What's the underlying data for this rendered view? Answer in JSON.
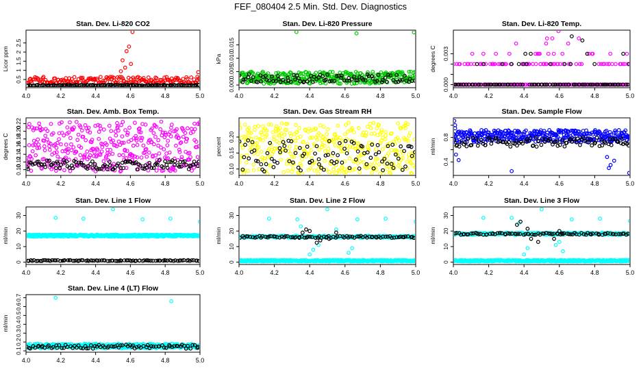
{
  "page": {
    "title": "FEF_080404  2.5 Min. Std. Dev. Diagnostics"
  },
  "colors": {
    "black": "#000000",
    "red": "#ff0000",
    "green": "#00cc00",
    "magenta": "#ff00ff",
    "yellow": "#ffff00",
    "blue": "#0000ff",
    "cyan": "#00ffff"
  },
  "chart_data": [
    {
      "type": "scatter",
      "title": "Stan. Dev. Li-820 CO2",
      "ylabel": "Licor ppm",
      "xlim": [
        4.0,
        5.0
      ],
      "ylim": [
        0.05,
        3.2
      ],
      "xticks": [
        4.0,
        4.2,
        4.4,
        4.6,
        4.8,
        5.0
      ],
      "yticks": [
        0.5,
        1.0,
        1.5,
        2.0,
        2.5
      ],
      "series": [
        {
          "color": "red",
          "base": 0.3,
          "spread": 0.35,
          "skew": 1.5,
          "n": 190,
          "outliers": [
            [
              4.612,
              3.1
            ],
            [
              4.578,
              2.05
            ],
            [
              4.592,
              2.3
            ],
            [
              4.555,
              1.55
            ],
            [
              4.603,
              1.35
            ],
            [
              4.57,
              1.15
            ],
            [
              4.545,
              0.95
            ],
            [
              4.99,
              0.9
            ],
            [
              4.985,
              0.65
            ]
          ]
        },
        {
          "color": "black",
          "base": 0.15,
          "spread": 0.06,
          "skew": 1,
          "n": 130,
          "outliers": []
        }
      ]
    },
    {
      "type": "scatter",
      "title": "Stan. Dev. Li-820 Pressure",
      "ylabel": "kPa",
      "xlim": [
        4.0,
        5.0
      ],
      "ylim": [
        -0.001,
        0.0205
      ],
      "xticks": [
        4.0,
        4.2,
        4.4,
        4.6,
        4.8,
        5.0
      ],
      "yticks": [
        0.0,
        0.005,
        0.01,
        0.015
      ],
      "ytick_labels": [
        "0.000",
        "0.005",
        "0.010",
        "0.015"
      ],
      "series": [
        {
          "color": "green",
          "base": 0.0005,
          "spread": 0.0045,
          "skew": 1,
          "n": 360,
          "outliers": [
            [
              4.325,
              0.0198
            ],
            [
              4.665,
              0.0193
            ],
            [
              4.99,
              0.0197
            ]
          ]
        },
        {
          "color": "black",
          "base": 0.001,
          "spread": 0.003,
          "skew": 1,
          "n": 90,
          "outliers": []
        }
      ]
    },
    {
      "type": "scatter",
      "title": "Stan. Dev. Li-820 Temp.",
      "ylabel": "degrees C",
      "xlim": [
        4.0,
        5.0
      ],
      "ylim": [
        -0.0003,
        0.0053
      ],
      "xticks": [
        4.0,
        4.2,
        4.4,
        4.6,
        4.8,
        5.0
      ],
      "yticks": [
        0.0,
        0.001,
        0.002,
        0.003
      ],
      "ytick_labels": [
        "0.000",
        "",
        "",
        "0.003"
      ],
      "series": [
        {
          "color": "magenta",
          "levels": [
            0.0,
            0.002,
            0.003
          ],
          "level_counts": [
            120,
            75,
            22
          ],
          "n": 217,
          "outliers": [
            [
              4.355,
              0.004
            ],
            [
              4.525,
              0.004
            ],
            [
              4.56,
              0.0045
            ],
            [
              4.595,
              0.0052
            ],
            [
              4.65,
              0.004
            ],
            [
              4.71,
              0.0045
            ],
            [
              4.53,
              0.0045
            ]
          ]
        },
        {
          "color": "black",
          "levels": [
            0.0,
            0.002,
            0.003
          ],
          "level_counts": [
            90,
            8,
            6
          ],
          "n": 104,
          "outliers": [
            [
              4.67,
              0.0047
            ],
            [
              4.73,
              0.0043
            ]
          ]
        }
      ]
    },
    {
      "type": "scatter",
      "title": "Stan. Dev. Amb. Box Temp.",
      "ylabel": "degrees C",
      "xlim": [
        4.0,
        5.0
      ],
      "ylim": [
        0.085,
        0.235
      ],
      "xticks": [
        4.0,
        4.2,
        4.4,
        4.6,
        4.8,
        5.0
      ],
      "yticks": [
        0.1,
        0.12,
        0.14,
        0.16,
        0.18,
        0.2,
        0.22
      ],
      "ytick_labels": [
        "0.10",
        "0.12",
        "0.14",
        "0.16",
        "0.18",
        "0.20",
        "0.22"
      ],
      "series": [
        {
          "color": "magenta",
          "base": 0.095,
          "spread": 0.13,
          "skew": 1,
          "n": 380,
          "outliers": []
        },
        {
          "color": "black",
          "base": 0.1,
          "spread": 0.025,
          "skew": 1,
          "n": 110,
          "outliers": []
        }
      ]
    },
    {
      "type": "scatter",
      "title": "Stan. Dev. Gas Stream RH",
      "ylabel": "percent",
      "xlim": [
        4.0,
        5.0
      ],
      "ylim": [
        0.08,
        0.26
      ],
      "xticks": [
        4.0,
        4.2,
        4.4,
        4.6,
        4.8,
        5.0
      ],
      "yticks": [
        0.1,
        0.15,
        0.2
      ],
      "ytick_labels": [
        "0.10",
        "0.15",
        "0.20"
      ],
      "series": [
        {
          "color": "yellow",
          "base": 0.085,
          "spread": 0.16,
          "skew": 1,
          "n": 390,
          "outliers": []
        },
        {
          "color": "black",
          "base": 0.09,
          "spread": 0.1,
          "skew": 1,
          "n": 95,
          "outliers": []
        }
      ]
    },
    {
      "type": "scatter",
      "title": "Stan. Dev. Sample Flow",
      "ylabel": "ml/min",
      "xlim": [
        4.0,
        5.0
      ],
      "ylim": [
        0.18,
        1.12
      ],
      "xticks": [
        4.0,
        4.2,
        4.4,
        4.6,
        4.8,
        5.0
      ],
      "yticks": [
        0.4,
        0.6,
        0.8,
        1.0
      ],
      "ytick_labels": [
        "0.4",
        "",
        "0.8",
        ""
      ],
      "series": [
        {
          "color": "blue",
          "base": 0.72,
          "spread": 0.2,
          "skew": 1,
          "n": 380,
          "outliers": [
            [
              4.005,
              1.07
            ],
            [
              4.01,
              1.0
            ],
            [
              4.015,
              0.52
            ],
            [
              4.03,
              0.43
            ],
            [
              4.01,
              0.95
            ],
            [
              4.33,
              0.25
            ],
            [
              4.88,
              0.3
            ],
            [
              4.89,
              0.35
            ],
            [
              4.995,
              0.22
            ],
            [
              4.91,
              0.42
            ],
            [
              4.87,
              0.48
            ]
          ]
        },
        {
          "color": "black",
          "base": 0.65,
          "spread": 0.15,
          "skew": 1,
          "n": 100,
          "outliers": []
        }
      ]
    },
    {
      "type": "scatter",
      "title": "Stan. Dev. Line 1 Flow",
      "ylabel": "ml/min",
      "xlim": [
        4.0,
        5.0
      ],
      "ylim": [
        -1.5,
        35.5
      ],
      "xticks": [
        4.0,
        4.2,
        4.4,
        4.6,
        4.8,
        5.0
      ],
      "yticks": [
        0,
        10,
        20,
        30
      ],
      "series": [
        {
          "color": "cyan",
          "base": 16.4,
          "spread": 1.3,
          "skew": 1,
          "n": 400,
          "outliers": [
            [
              4.17,
              28.5
            ],
            [
              4.33,
              28.0
            ],
            [
              4.5,
              34.0
            ],
            [
              4.67,
              27.5
            ],
            [
              4.83,
              28.0
            ],
            [
              5.0,
              26.0
            ]
          ]
        },
        {
          "color": "black",
          "base": 0.7,
          "spread": 0.6,
          "skew": 1,
          "n": 95,
          "outliers": []
        }
      ]
    },
    {
      "type": "scatter",
      "title": "Stan. Dev. Line 2 Flow",
      "ylabel": "ml/min",
      "xlim": [
        4.0,
        5.0
      ],
      "ylim": [
        -1.5,
        35.5
      ],
      "xticks": [
        4.0,
        4.2,
        4.4,
        4.6,
        4.8,
        5.0
      ],
      "yticks": [
        0,
        10,
        20,
        30
      ],
      "series": [
        {
          "color": "cyan",
          "base": 0.4,
          "spread": 1.0,
          "skew": 1,
          "n": 380,
          "outliers": [
            [
              4.17,
              28.0
            ],
            [
              4.33,
              27.5
            ],
            [
              4.5,
              34.0
            ],
            [
              4.67,
              27.5
            ],
            [
              4.83,
              28.0
            ],
            [
              5.0,
              26.0
            ],
            [
              4.4,
              5.0
            ],
            [
              4.42,
              8.0
            ],
            [
              4.45,
              11.0
            ],
            [
              4.62,
              6.0
            ],
            [
              4.64,
              9.0
            ],
            [
              4.35,
              23.0
            ],
            [
              4.55,
              21.0
            ]
          ]
        },
        {
          "color": "cyan",
          "base": 15.6,
          "spread": 1.4,
          "skew": 1,
          "n": 200,
          "outliers": []
        },
        {
          "color": "black",
          "base": 15.6,
          "spread": 1.2,
          "skew": 1,
          "n": 85,
          "outliers": [
            [
              4.38,
              21.0
            ],
            [
              4.36,
              19.0
            ],
            [
              4.44,
              12.5
            ],
            [
              4.46,
              14.0
            ],
            [
              4.51,
              15.0
            ],
            [
              4.55,
              19.0
            ],
            [
              4.4,
              20.0
            ]
          ]
        }
      ]
    },
    {
      "type": "scatter",
      "title": "Stan. Dev. Line 3 Flow",
      "ylabel": "ml/min",
      "xlim": [
        4.0,
        5.0
      ],
      "ylim": [
        -1.5,
        35.5
      ],
      "xticks": [
        4.0,
        4.2,
        4.4,
        4.6,
        4.8,
        5.0
      ],
      "yticks": [
        0,
        10,
        20,
        30
      ],
      "series": [
        {
          "color": "cyan",
          "base": 0.4,
          "spread": 1.0,
          "skew": 1,
          "n": 380,
          "outliers": [
            [
              4.17,
              28.5
            ],
            [
              4.33,
              28.5
            ],
            [
              4.5,
              34.0
            ],
            [
              4.67,
              27.5
            ],
            [
              4.83,
              28.0
            ],
            [
              5.0,
              26.5
            ],
            [
              4.4,
              5.0
            ],
            [
              4.42,
              9.0
            ],
            [
              4.58,
              11.0
            ],
            [
              4.62,
              7.0
            ],
            [
              4.37,
              25.0
            ],
            [
              4.6,
              13.0
            ]
          ]
        },
        {
          "color": "cyan",
          "base": 17.5,
          "spread": 1.5,
          "skew": 1,
          "n": 200,
          "outliers": []
        },
        {
          "color": "black",
          "base": 17.6,
          "spread": 1.2,
          "skew": 1,
          "n": 85,
          "outliers": [
            [
              4.38,
              26.0
            ],
            [
              4.36,
              24.0
            ],
            [
              4.42,
              21.5
            ],
            [
              4.44,
              15.0
            ],
            [
              4.48,
              13.0
            ],
            [
              4.57,
              15.0
            ],
            [
              4.62,
              18.0
            ],
            [
              4.6,
              20.0
            ]
          ]
        }
      ]
    },
    {
      "type": "scatter",
      "title": "Stan. Dev. Line 4 (LT) Flow",
      "ylabel": "ml/min",
      "xlim": [
        4.0,
        5.0
      ],
      "ylim": [
        0.085,
        0.735
      ],
      "xticks": [
        4.0,
        4.2,
        4.4,
        4.6,
        4.8,
        5.0
      ],
      "yticks": [
        0.1,
        0.2,
        0.3,
        0.4,
        0.5,
        0.6,
        0.7
      ],
      "series": [
        {
          "color": "cyan",
          "base": 0.13,
          "spread": 0.05,
          "skew": 1,
          "n": 390,
          "outliers": [
            [
              4.17,
              0.7
            ],
            [
              4.835,
              0.66
            ]
          ]
        },
        {
          "color": "black",
          "base": 0.125,
          "spread": 0.045,
          "skew": 1,
          "n": 85,
          "outliers": []
        }
      ]
    }
  ]
}
